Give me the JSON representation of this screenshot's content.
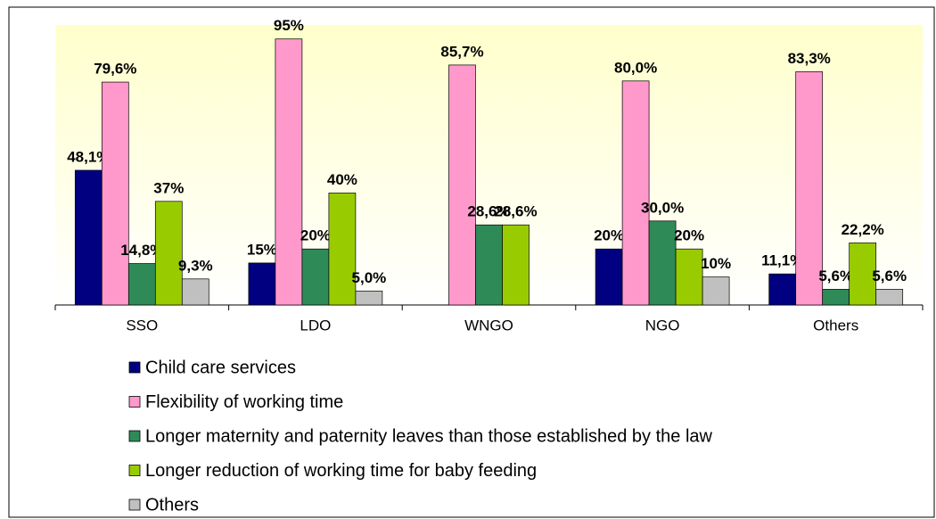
{
  "chart_data": {
    "type": "bar",
    "categories": [
      "SSO",
      "LDO",
      "WNGO",
      "NGO",
      "Others"
    ],
    "ylim": [
      0,
      100
    ],
    "legend": "bottom",
    "series": [
      {
        "name": "Child care services",
        "color": "#000080",
        "values": [
          48.1,
          15,
          null,
          20,
          11.1
        ],
        "value_labels": [
          "48,1%",
          "15%",
          null,
          "20%",
          "11,1%"
        ]
      },
      {
        "name": "Flexibility of working time",
        "color": "#ff99cc",
        "values": [
          79.6,
          95,
          85.7,
          80.0,
          83.3
        ],
        "value_labels": [
          "79,6%",
          "95%",
          "85,7%",
          "80,0%",
          "83,3%"
        ]
      },
      {
        "name": "Longer maternity and paternity leaves than those established by the law",
        "color": "#2e8b57",
        "values": [
          14.8,
          20,
          28.6,
          30.0,
          5.6
        ],
        "value_labels": [
          "14,8%",
          "20%",
          "28,6%",
          "30,0%",
          "5,6%"
        ]
      },
      {
        "name": "Longer reduction of working time for baby feeding",
        "color": "#99cc00",
        "values": [
          37,
          40,
          28.6,
          20,
          22.2
        ],
        "value_labels": [
          "37%",
          "40%",
          "28,6%",
          "20%",
          "22,2%"
        ]
      },
      {
        "name": "Others",
        "color": "#c0c0c0",
        "values": [
          9.3,
          5.0,
          null,
          10,
          5.6
        ],
        "value_labels": [
          "9,3%",
          "5,0%",
          null,
          "10%",
          "5,6%"
        ]
      }
    ]
  }
}
